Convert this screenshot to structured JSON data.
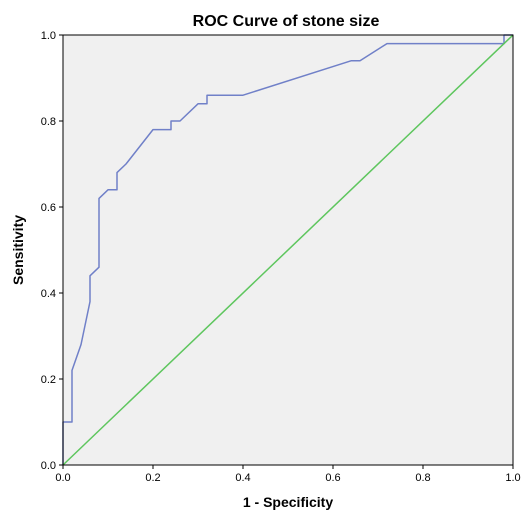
{
  "chart_data": {
    "type": "line",
    "title": "ROC Curve of stone size",
    "xlabel": "1 - Specificity",
    "ylabel": "Sensitivity",
    "xlim": [
      0,
      1
    ],
    "ylim": [
      0,
      1
    ],
    "x_ticks": [
      "0.0",
      "0.2",
      "0.4",
      "0.6",
      "0.8",
      "1.0"
    ],
    "y_ticks": [
      "0.0",
      "0.2",
      "0.4",
      "0.6",
      "0.8",
      "1.0"
    ],
    "grid": false,
    "legend": "none",
    "background_color": "#f0f0f0",
    "series": [
      {
        "color": "#7080c8",
        "points": [
          [
            0.0,
            0.0
          ],
          [
            0.0,
            0.1
          ],
          [
            0.02,
            0.1
          ],
          [
            0.02,
            0.22
          ],
          [
            0.04,
            0.28
          ],
          [
            0.06,
            0.38
          ],
          [
            0.06,
            0.44
          ],
          [
            0.08,
            0.46
          ],
          [
            0.08,
            0.62
          ],
          [
            0.1,
            0.64
          ],
          [
            0.12,
            0.64
          ],
          [
            0.12,
            0.68
          ],
          [
            0.14,
            0.7
          ],
          [
            0.2,
            0.78
          ],
          [
            0.24,
            0.78
          ],
          [
            0.24,
            0.8
          ],
          [
            0.26,
            0.8
          ],
          [
            0.3,
            0.84
          ],
          [
            0.32,
            0.84
          ],
          [
            0.32,
            0.86
          ],
          [
            0.4,
            0.86
          ],
          [
            0.64,
            0.94
          ],
          [
            0.66,
            0.94
          ],
          [
            0.72,
            0.98
          ],
          [
            0.98,
            0.98
          ],
          [
            0.98,
            1.0
          ],
          [
            1.0,
            1.0
          ]
        ]
      },
      {
        "color": "#5ec65e",
        "points": [
          [
            0.0,
            0.0
          ],
          [
            1.0,
            1.0
          ]
        ]
      }
    ]
  }
}
